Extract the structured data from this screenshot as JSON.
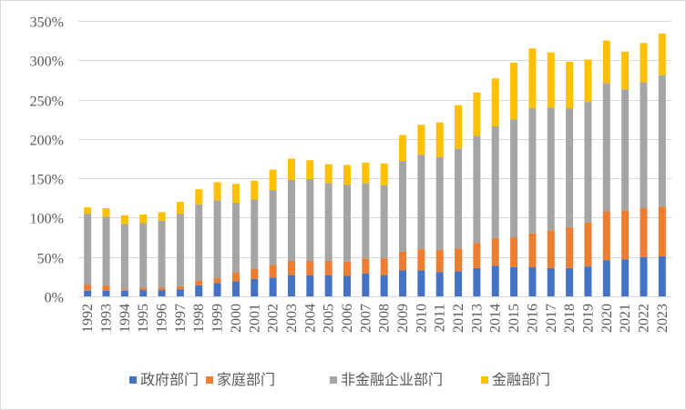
{
  "chart_data": {
    "type": "bar",
    "stacked": true,
    "title": "",
    "xlabel": "",
    "ylabel": "",
    "ylim": [
      0,
      350
    ],
    "yticks": [
      0,
      50,
      100,
      150,
      200,
      250,
      300,
      350
    ],
    "ytick_labels": [
      "0%",
      "50%",
      "100%",
      "150%",
      "200%",
      "250%",
      "300%",
      "350%"
    ],
    "grid": true,
    "legend_position": "bottom",
    "categories": [
      "1992",
      "1993",
      "1994",
      "1995",
      "1996",
      "1997",
      "1998",
      "1999",
      "2000",
      "2001",
      "2002",
      "2003",
      "2004",
      "2005",
      "2006",
      "2007",
      "2008",
      "2009",
      "2010",
      "2011",
      "2012",
      "2013",
      "2014",
      "2015",
      "2016",
      "2017",
      "2018",
      "2019",
      "2020",
      "2021",
      "2022",
      "2023"
    ],
    "series": [
      {
        "name": "政府部门",
        "color": "#4472C4",
        "values": [
          7,
          7,
          7,
          8,
          8,
          9,
          14,
          17,
          19,
          22,
          24,
          27,
          27,
          27,
          26,
          29,
          27,
          33,
          33,
          31,
          32,
          36,
          39,
          37,
          37,
          36,
          36,
          38,
          46,
          47,
          50,
          51
        ]
      },
      {
        "name": "家庭部门",
        "color": "#ED7D31",
        "values": [
          8,
          7,
          2,
          3,
          3,
          4,
          6,
          6,
          11,
          13,
          16,
          18,
          18,
          18,
          18,
          19,
          21,
          24,
          27,
          28,
          29,
          32,
          35,
          38,
          43,
          48,
          52,
          56,
          62,
          62,
          62,
          63
        ]
      },
      {
        "name": "非金融企业部门",
        "color": "#A5A5A5",
        "values": [
          90,
          87,
          83,
          82,
          85,
          92,
          97,
          99,
          89,
          88,
          95,
          103,
          104,
          99,
          98,
          96,
          93,
          115,
          120,
          118,
          127,
          136,
          142,
          150,
          159,
          156,
          151,
          153,
          163,
          154,
          160,
          167
        ]
      },
      {
        "name": "金融部门",
        "color": "#FFC000",
        "values": [
          8,
          11,
          11,
          11,
          11,
          15,
          19,
          23,
          24,
          24,
          26,
          27,
          24,
          24,
          25,
          26,
          28,
          33,
          38,
          44,
          55,
          55,
          61,
          72,
          76,
          70,
          59,
          54,
          54,
          48,
          50,
          53
        ]
      }
    ]
  }
}
